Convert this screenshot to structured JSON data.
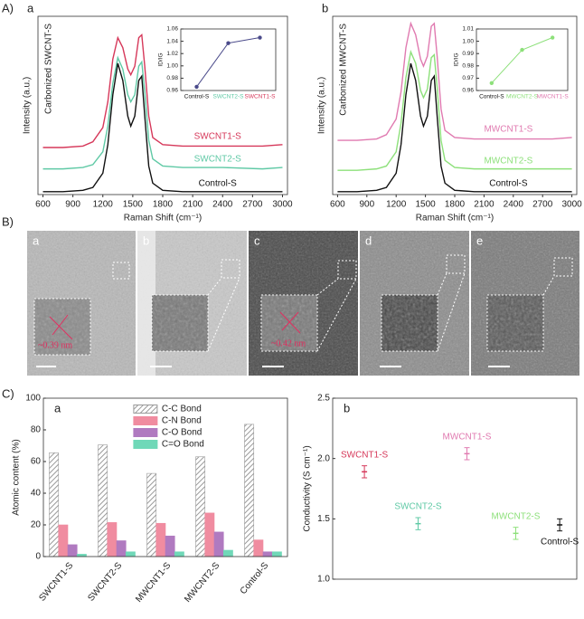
{
  "chart_data": [
    {
      "type": "line",
      "section": "A)",
      "panel": "a",
      "title": "Carbonized SWCNT-S",
      "x_label": "Raman Shift (cm⁻¹)",
      "y_label": "Intensity (a.u.)",
      "x": [
        600,
        800,
        1000,
        1100,
        1200,
        1250,
        1300,
        1350,
        1400,
        1450,
        1480,
        1520,
        1560,
        1590,
        1620,
        1660,
        1700,
        1800,
        2000,
        2400,
        2800,
        3000
      ],
      "xlim": [
        550,
        3050
      ],
      "xticks": [
        600,
        900,
        1200,
        1500,
        1800,
        2100,
        2400,
        2700,
        3000
      ],
      "ylim": [
        0,
        1.25
      ],
      "series": [
        {
          "name": "SWCNT1-S",
          "color": "#d6385a",
          "values": [
            0.33,
            0.33,
            0.34,
            0.37,
            0.47,
            0.65,
            0.95,
            1.1,
            1.03,
            0.88,
            0.84,
            0.9,
            1.1,
            1.12,
            0.9,
            0.55,
            0.4,
            0.35,
            0.34,
            0.34,
            0.34,
            0.35
          ]
        },
        {
          "name": "SWCNT2-S",
          "color": "#5fc9a5",
          "values": [
            0.18,
            0.18,
            0.19,
            0.21,
            0.3,
            0.48,
            0.78,
            0.96,
            0.88,
            0.7,
            0.65,
            0.7,
            0.9,
            0.93,
            0.72,
            0.38,
            0.25,
            0.2,
            0.19,
            0.19,
            0.18,
            0.19
          ]
        },
        {
          "name": "Control-S",
          "color": "#111111",
          "values": [
            0.02,
            0.02,
            0.03,
            0.05,
            0.15,
            0.35,
            0.7,
            0.92,
            0.8,
            0.55,
            0.48,
            0.55,
            0.8,
            0.83,
            0.55,
            0.2,
            0.08,
            0.03,
            0.02,
            0.02,
            0.02,
            0.02
          ]
        }
      ]
    },
    {
      "type": "line",
      "y_label": "ID/IG",
      "categories": [
        "Control-S",
        "SWCNT2-S",
        "SWCNT1-S"
      ],
      "category_colors": [
        "#111111",
        "#5fc9a5",
        "#d6385a"
      ],
      "ylim": [
        0.96,
        1.06
      ],
      "yticks": [
        0.96,
        0.98,
        {
          "value": 1,
          "label": "1.00"
        },
        1.02,
        1.04,
        1.06
      ],
      "series": [
        {
          "color": "#4a4a8a",
          "values": [
            0.966,
            1.037,
            1.046
          ]
        }
      ]
    },
    {
      "type": "line",
      "panel": "b",
      "title": "Carbonized MWCNT-S",
      "x_label": "Raman Shift (cm⁻¹)",
      "y_label": "Intensity (a.u.)",
      "x": [
        600,
        800,
        1000,
        1100,
        1200,
        1250,
        1300,
        1350,
        1400,
        1450,
        1480,
        1520,
        1560,
        1590,
        1620,
        1660,
        1700,
        1800,
        2000,
        2400,
        2800,
        3000
      ],
      "xlim": [
        550,
        3050
      ],
      "xticks": [
        600,
        900,
        1200,
        1500,
        1800,
        2100,
        2400,
        2700,
        3000
      ],
      "ylim": [
        0,
        1.25
      ],
      "series": [
        {
          "name": "MWCNT1-S",
          "color": "#e07ab0",
          "values": [
            0.38,
            0.38,
            0.39,
            0.42,
            0.53,
            0.72,
            1.03,
            1.2,
            1.12,
            0.95,
            0.9,
            0.97,
            1.18,
            1.2,
            0.97,
            0.6,
            0.45,
            0.4,
            0.39,
            0.39,
            0.39,
            0.4
          ]
        },
        {
          "name": "MWCNT2-S",
          "color": "#8de07a",
          "values": [
            0.17,
            0.17,
            0.18,
            0.2,
            0.3,
            0.5,
            0.82,
            1.0,
            0.92,
            0.73,
            0.68,
            0.74,
            0.96,
            0.98,
            0.75,
            0.38,
            0.24,
            0.19,
            0.18,
            0.18,
            0.18,
            0.18
          ]
        },
        {
          "name": "Control-S",
          "color": "#111111",
          "values": [
            0.02,
            0.02,
            0.03,
            0.05,
            0.15,
            0.35,
            0.7,
            0.92,
            0.8,
            0.55,
            0.48,
            0.55,
            0.8,
            0.83,
            0.55,
            0.2,
            0.08,
            0.03,
            0.02,
            0.02,
            0.02,
            0.02
          ]
        }
      ]
    },
    {
      "type": "line",
      "y_label": "ID/IG",
      "categories": [
        "Control-S",
        "MWCNT2-S",
        "MWCNT1-S"
      ],
      "category_colors": [
        "#111111",
        "#8de07a",
        "#e07ab0"
      ],
      "ylim": [
        0.96,
        1.01
      ],
      "yticks": [
        0.96,
        0.97,
        0.98,
        0.99,
        {
          "value": 1,
          "label": "1.00"
        },
        1.01
      ],
      "series": [
        {
          "color": "#8de07a",
          "values": [
            0.966,
            0.993,
            1.003
          ]
        }
      ]
    },
    {
      "type": "bar",
      "section": "C)",
      "panel": "a",
      "y_label": "Atomic content (%)",
      "categories": [
        "SWCNT1-S",
        "SWCNT2-S",
        "MWCNT1-S",
        "MWCNT2-S",
        "Control-S"
      ],
      "ylim": [
        0,
        100
      ],
      "yticks": [
        0,
        20,
        40,
        60,
        80,
        100
      ],
      "legend": "upper center",
      "series": [
        {
          "name": "C-C  Bond",
          "color": "#9a9a9a",
          "hatch": true,
          "values": [
            65.5,
            70.5,
            52.5,
            63,
            83.5
          ]
        },
        {
          "name": "C-N  Bond",
          "color": "#f08ca0",
          "values": [
            20,
            21.5,
            21,
            27.5,
            10.5
          ]
        },
        {
          "name": "C-O  Bond",
          "color": "#b07ac0",
          "values": [
            7.5,
            10,
            13,
            15.5,
            3
          ]
        },
        {
          "name": "C=O Bond",
          "color": "#70d8b8",
          "values": [
            1.5,
            3,
            3,
            4,
            3
          ]
        }
      ]
    },
    {
      "type": "scatter",
      "panel": "b",
      "y_label": "Conductivity (S cm⁻¹)",
      "xlim": [
        0,
        10
      ],
      "ylim": [
        1,
        2.5
      ],
      "yticks": [
        {
          "value": 1,
          "label": "1.0"
        },
        1.5,
        {
          "value": 2,
          "label": "2.0"
        },
        2.5
      ],
      "series": [
        {
          "name": "SWCNT1-S",
          "color": "#d6385a",
          "x": [
            1.3
          ],
          "values": [
            1.89
          ],
          "errors": [
            0.05
          ]
        },
        {
          "name": "SWCNT2-S",
          "color": "#5fc9a5",
          "x": [
            3.5
          ],
          "values": [
            1.46
          ],
          "errors": [
            0.05
          ]
        },
        {
          "name": "MWCNT1-S",
          "color": "#e07ab0",
          "x": [
            5.5
          ],
          "values": [
            2.04
          ],
          "errors": [
            0.05
          ]
        },
        {
          "name": "MWCNT2-S",
          "color": "#8de07a",
          "x": [
            7.5
          ],
          "values": [
            1.38
          ],
          "errors": [
            0.05
          ]
        },
        {
          "name": "Control-S",
          "color": "#111111",
          "x": [
            9.3
          ],
          "values": [
            1.45
          ],
          "errors": [
            0.05
          ]
        }
      ]
    }
  ],
  "tem": {
    "section": "B)",
    "panels": [
      "a",
      "b",
      "c",
      "d",
      "e"
    ],
    "annotations": [
      "~0.39 nm",
      "~0.42 nm"
    ]
  }
}
